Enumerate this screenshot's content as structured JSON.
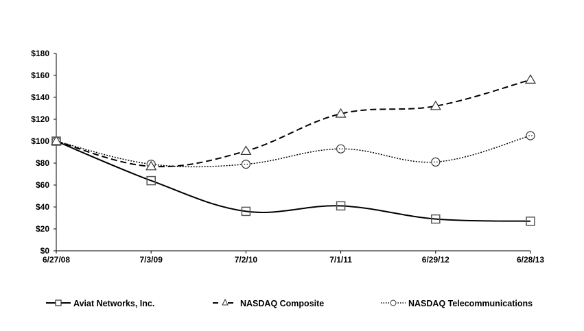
{
  "chart_data": {
    "type": "line",
    "title": "",
    "xlabel": "",
    "ylabel": "",
    "categories": [
      "6/27/08",
      "7/3/09",
      "7/2/10",
      "7/1/11",
      "6/29/12",
      "6/28/13"
    ],
    "ylim": [
      0,
      180
    ],
    "yticks": [
      0,
      20,
      40,
      60,
      80,
      100,
      120,
      140,
      160,
      180
    ],
    "ytick_labels": [
      "$0",
      "$20",
      "$40",
      "$60",
      "$80",
      "$100",
      "$120",
      "$140",
      "$160",
      "$180"
    ],
    "grid": false,
    "legend_position": "bottom",
    "series": [
      {
        "name": "Aviat Networks,  Inc.",
        "values": [
          100,
          64,
          36,
          41,
          29,
          27
        ],
        "marker": "square",
        "line": "solid",
        "color": "#000000",
        "marker_color": "#555555"
      },
      {
        "name": "NASDAQ Composite",
        "values": [
          100,
          77,
          91,
          125,
          132,
          156
        ],
        "marker": "triangle",
        "line": "dashed",
        "color": "#000000",
        "marker_color": "#333333"
      },
      {
        "name": "NASDAQ Telecommunications",
        "values": [
          100,
          79,
          79,
          93,
          81,
          105
        ],
        "marker": "circle",
        "line": "dotted",
        "color": "#000000",
        "marker_color": "#333333"
      }
    ]
  }
}
